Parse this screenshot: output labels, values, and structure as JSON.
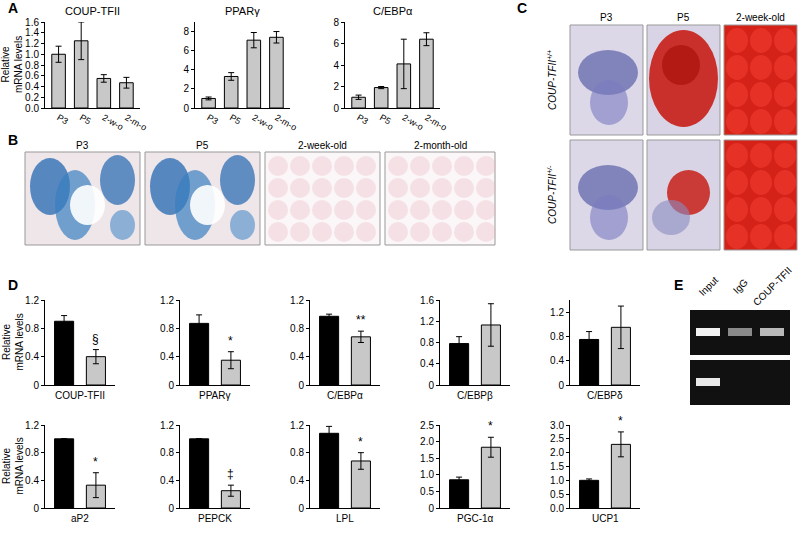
{
  "chart_data": [
    {
      "type": "bar",
      "title": "COUP-TFII",
      "y_label": "Relative mRNA levels",
      "categories": [
        "P3",
        "P5",
        "2-w-o",
        "2-m-o"
      ],
      "values": [
        1.0,
        1.25,
        0.55,
        0.47
      ],
      "errors": [
        0.15,
        0.35,
        0.07,
        0.1
      ],
      "color": "#c8c8c8",
      "ylim": [
        0,
        1.6
      ],
      "yticks": [
        {
          "value": 0,
          "label": "0.0"
        },
        0.2,
        0.4,
        0.6,
        0.8,
        {
          "value": 1,
          "label": "1.0"
        },
        1.2,
        1.4,
        1.6
      ]
    },
    {
      "type": "bar",
      "title": "PPARγ",
      "categories": [
        "P3",
        "P5",
        "2-w-o",
        "2-m-o"
      ],
      "values": [
        1.0,
        3.3,
        7.1,
        7.4
      ],
      "errors": [
        0.15,
        0.4,
        0.8,
        0.6
      ],
      "color": "#c8c8c8",
      "ylim": [
        0,
        9
      ],
      "yticks": [
        0,
        2,
        4,
        6,
        8
      ]
    },
    {
      "type": "bar",
      "title": "C/EBPα",
      "categories": [
        "P3",
        "P5",
        "2-w-o",
        "2-m-o"
      ],
      "values": [
        1.0,
        1.9,
        4.1,
        6.4
      ],
      "errors": [
        0.2,
        0.1,
        2.3,
        0.6
      ],
      "color": "#c8c8c8",
      "ylim": [
        0,
        8
      ],
      "yticks": [
        0,
        2,
        4,
        6,
        8
      ]
    },
    {
      "type": "bar",
      "x_label": "COUP-TFII",
      "y_label": "Relative mRNA levels",
      "categories": [
        null,
        null
      ],
      "values": [
        0.9,
        0.4
      ],
      "errors": [
        0.08,
        0.1
      ],
      "colors": [
        "#000000",
        "#c8c8c8"
      ],
      "ylim": [
        0,
        1.2
      ],
      "yticks": [
        0,
        0.4,
        0.8,
        1.2
      ],
      "annotations": [
        {
          "index": 1,
          "text": "§"
        }
      ]
    },
    {
      "type": "bar",
      "x_label": "PPARγ",
      "categories": [
        null,
        null
      ],
      "values": [
        0.87,
        0.35
      ],
      "errors": [
        0.12,
        0.12
      ],
      "colors": [
        "#000000",
        "#c8c8c8"
      ],
      "ylim": [
        0,
        1.2
      ],
      "yticks": [
        0,
        0.4,
        0.8,
        1.2
      ],
      "annotations": [
        {
          "index": 1,
          "text": "*"
        }
      ]
    },
    {
      "type": "bar",
      "x_label": "C/EBPα",
      "categories": [
        null,
        null
      ],
      "values": [
        0.97,
        0.68
      ],
      "errors": [
        0.03,
        0.08
      ],
      "colors": [
        "#000000",
        "#c8c8c8"
      ],
      "ylim": [
        0,
        1.2
      ],
      "yticks": [
        0,
        0.4,
        0.8,
        1.2
      ],
      "annotations": [
        {
          "index": 1,
          "text": "**"
        }
      ]
    },
    {
      "type": "bar",
      "x_label": "C/EBPβ",
      "categories": [
        null,
        null
      ],
      "values": [
        0.78,
        1.13
      ],
      "errors": [
        0.13,
        0.4
      ],
      "colors": [
        "#000000",
        "#c8c8c8"
      ],
      "ylim": [
        0,
        1.6
      ],
      "yticks": [
        0,
        0.4,
        0.8,
        1.2,
        1.6
      ]
    },
    {
      "type": "bar",
      "x_label": "C/EBPδ",
      "categories": [
        null,
        null
      ],
      "values": [
        0.75,
        0.95
      ],
      "errors": [
        0.13,
        0.35
      ],
      "colors": [
        "#000000",
        "#c8c8c8"
      ],
      "ylim": [
        0,
        1.4
      ],
      "yticks": [
        0,
        0.4,
        0.8,
        1.2
      ]
    },
    {
      "type": "bar",
      "x_label": "aP2",
      "y_label": "Relative mRNA levels",
      "categories": [
        null,
        null
      ],
      "values": [
        1.0,
        0.33
      ],
      "errors": [
        0,
        0.18
      ],
      "colors": [
        "#000000",
        "#c8c8c8"
      ],
      "ylim": [
        0,
        1.2
      ],
      "yticks": [
        0,
        0.4,
        0.8,
        1.2
      ],
      "annotations": [
        {
          "index": 1,
          "text": "*"
        }
      ]
    },
    {
      "type": "bar",
      "x_label": "PEPCK",
      "categories": [
        null,
        null
      ],
      "values": [
        1.0,
        0.25
      ],
      "errors": [
        0,
        0.08
      ],
      "colors": [
        "#000000",
        "#c8c8c8"
      ],
      "ylim": [
        0,
        1.2
      ],
      "yticks": [
        0,
        0.4,
        0.8,
        1.2
      ],
      "annotations": [
        {
          "index": 1,
          "text": "‡"
        }
      ]
    },
    {
      "type": "bar",
      "x_label": "LPL",
      "categories": [
        null,
        null
      ],
      "values": [
        1.08,
        0.68
      ],
      "errors": [
        0.1,
        0.12
      ],
      "colors": [
        "#000000",
        "#c8c8c8"
      ],
      "ylim": [
        0,
        1.2
      ],
      "yticks": [
        0,
        0.4,
        0.8,
        1.2
      ],
      "annotations": [
        {
          "index": 1,
          "text": "*"
        }
      ]
    },
    {
      "type": "bar",
      "x_label": "PGC-1α",
      "categories": [
        null,
        null
      ],
      "values": [
        0.85,
        1.83
      ],
      "errors": [
        0.08,
        0.3
      ],
      "colors": [
        "#000000",
        "#c8c8c8"
      ],
      "ylim": [
        0,
        2.5
      ],
      "yticks": [
        0,
        0.5,
        {
          "value": 1,
          "label": "1.0"
        },
        1.5,
        {
          "value": 2,
          "label": "2.0"
        },
        2.5
      ],
      "annotations": [
        {
          "index": 1,
          "text": "*"
        }
      ]
    },
    {
      "type": "bar",
      "x_label": "UCP1",
      "categories": [
        null,
        null
      ],
      "values": [
        1.0,
        2.3
      ],
      "errors": [
        0.05,
        0.45
      ],
      "colors": [
        "#000000",
        "#c8c8c8"
      ],
      "ylim": [
        0,
        3
      ],
      "yticks": [
        {
          "value": 0,
          "label": "0.0"
        },
        0.5,
        {
          "value": 1,
          "label": "1.0"
        },
        1.5,
        {
          "value": 2,
          "label": "2.0"
        },
        2.5,
        {
          "value": 3,
          "label": "3.0"
        }
      ],
      "annotations": [
        {
          "index": 1,
          "text": "*"
        }
      ]
    }
  ],
  "panel_labels": [
    "A",
    "B",
    "C",
    "D",
    "E"
  ],
  "panel_b": {
    "labels": [
      "P3",
      "P5",
      "2-week-old",
      "2-month-old"
    ]
  },
  "panel_c": {
    "columns": [
      "P3",
      "P5",
      "2-week-old"
    ],
    "rows": [
      {
        "text": "COUP-TFII",
        "sup": "+/+"
      },
      {
        "text": "COUP-TFII",
        "sup": "+/-"
      }
    ]
  },
  "panel_e": {
    "lanes": [
      "Input",
      "IgG",
      "COUP-TFII"
    ]
  }
}
